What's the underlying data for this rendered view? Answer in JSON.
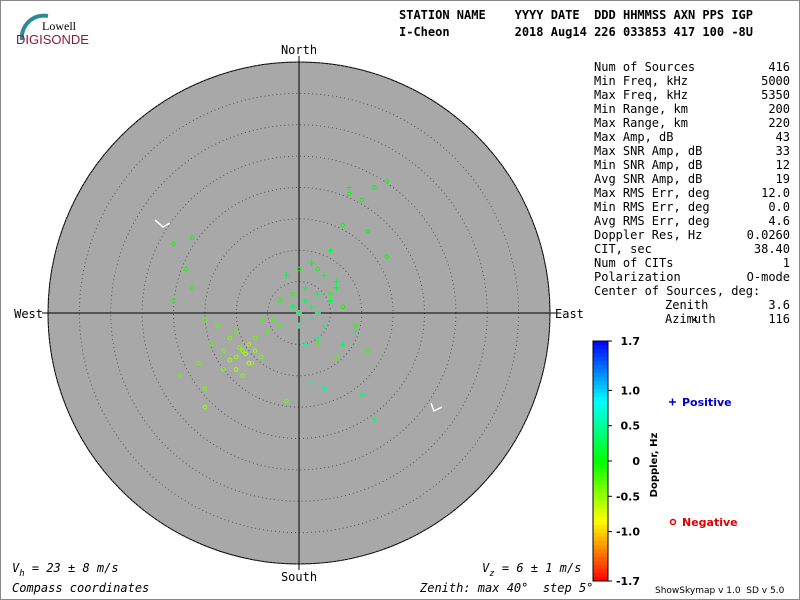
{
  "header": {
    "logo_top": "Lowell",
    "logo_bottom": "DIGISONDE",
    "columns": "STATION NAME    YYYY DATE  DDD HHMMSS AXN PPS IGP",
    "values": "I-Cheon         2018 Aug14 226 033853 417 100 -8U"
  },
  "chart_data": {
    "type": "skymap",
    "directions": {
      "north": "North",
      "south": "South",
      "east": "East",
      "west": "West"
    },
    "rlim": [
      0,
      40
    ],
    "rticks": [
      5,
      10,
      15,
      20,
      25,
      30,
      35,
      40
    ],
    "colorbar": {
      "label": "Doppler, Hz",
      "lim": [
        -1.7,
        1.7
      ],
      "ticks": [
        1.7,
        {
          "value": 1,
          "label": "1.0"
        },
        0.5,
        0,
        -0.5,
        {
          "value": -1,
          "label": "-1.0"
        },
        -1.7
      ]
    },
    "series": [
      {
        "name": "Positive",
        "marker": "plus",
        "color": "#0000cc",
        "x": [
          1,
          2,
          0,
          3,
          1,
          4,
          -1,
          2,
          3,
          5,
          6,
          2,
          3,
          0,
          4,
          7,
          9,
          2,
          4,
          10,
          12,
          8,
          6,
          -2,
          5,
          1
        ],
        "y": [
          2,
          1,
          0,
          3,
          4,
          6,
          1,
          -1,
          0,
          2,
          5,
          8,
          -4,
          -2,
          -2,
          -5,
          -3,
          -11,
          -12,
          -13,
          -17,
          20,
          4,
          6,
          10,
          -5
        ],
        "values": [
          0.3,
          0.35,
          0.3,
          0.25,
          0.2,
          0.2,
          0.3,
          0.4,
          0.3,
          0.25,
          0.2,
          0.15,
          0.4,
          0.45,
          0.35,
          0.3,
          0.3,
          0.5,
          0.45,
          0.4,
          0.35,
          0.1,
          0.2,
          0.2,
          0.15,
          0.5
        ]
      },
      {
        "name": "Negative",
        "marker": "circle",
        "color": "#dd0000",
        "x": [
          -9,
          -8,
          -10,
          -9.5,
          -8.5,
          -7,
          -11,
          -12,
          -6,
          -10,
          -7.5,
          -13,
          -14,
          -12,
          -9,
          -5,
          -4,
          -3,
          -6,
          -15,
          -17,
          -20,
          -18,
          -16,
          -19,
          -15,
          -3,
          -1,
          0,
          3,
          5,
          7,
          9,
          11,
          6,
          3,
          -2,
          -15,
          -8,
          -10,
          -11,
          -7,
          8,
          12,
          14,
          11,
          14,
          10,
          7,
          -20,
          -17
        ],
        "y": [
          -6,
          -5,
          -7,
          -5.5,
          -6.5,
          -4,
          -4,
          -6,
          -7,
          -3,
          -8,
          -2,
          -5,
          -9,
          -10,
          -3,
          -1,
          -2,
          -1,
          -1,
          4,
          2,
          7,
          -8,
          -10,
          -12,
          2,
          3,
          7,
          7,
          3,
          1,
          -2,
          -6,
          -7,
          -5,
          -14,
          -15,
          -8,
          -9,
          -7.5,
          -6,
          19,
          20,
          21,
          13,
          9,
          18,
          14,
          11,
          12
        ],
        "values": [
          -0.45,
          -0.5,
          -0.5,
          -0.4,
          -0.55,
          -0.3,
          -0.4,
          -0.35,
          -0.4,
          -0.3,
          -0.45,
          -0.3,
          -0.25,
          -0.4,
          -0.4,
          -0.25,
          -0.2,
          -0.2,
          -0.2,
          -0.3,
          -0.1,
          -0.1,
          -0.05,
          -0.3,
          -0.3,
          -0.35,
          -0.1,
          -0.1,
          -0.05,
          -0.05,
          -0.1,
          -0.05,
          -0.1,
          -0.15,
          -0.2,
          -0.2,
          -0.4,
          -0.5,
          -0.6,
          -0.55,
          -0.5,
          -0.5,
          0,
          0.05,
          0.02,
          0.02,
          0,
          0,
          0,
          -0.05,
          0
        ]
      }
    ]
  },
  "stats": {
    "rows": [
      [
        "Num of Sources",
        "416"
      ],
      [
        "Min Freq, kHz",
        "5000"
      ],
      [
        "Max Freq, kHz",
        "5350"
      ],
      [
        "Min Range, km",
        "200"
      ],
      [
        "Max Range, km",
        "220"
      ],
      [
        "Max Amp, dB",
        "43"
      ],
      [
        "Max SNR Amp, dB",
        "33"
      ],
      [
        "Min SNR Amp, dB",
        "12"
      ],
      [
        "Avg SNR Amp, dB",
        "19"
      ],
      [
        "Max RMS Err, deg",
        "12.0"
      ],
      [
        "Min RMS Err, deg",
        "0.0"
      ],
      [
        "Avg RMS Err, deg",
        "4.6"
      ],
      [
        "Doppler Res, Hz",
        "0.0260"
      ],
      [
        "CIT, sec",
        "38.40"
      ],
      [
        "Num of CITs",
        "1"
      ],
      [
        "Polarization",
        "O-mode"
      ]
    ],
    "center_title": "Center of Sources, deg:",
    "center_rows": [
      [
        "Zenith",
        "3.6"
      ],
      [
        "Azimuth",
        "116"
      ]
    ]
  },
  "footer": {
    "vh_symbol": "V",
    "vh_sub": "h",
    "vh_text": " = 23 ± 8 m/s",
    "vz_symbol": "V",
    "vz_sub": "z",
    "vz_text": " = 6 ± 1 m/s",
    "coords": "Compass coordinates",
    "zenith": "Zenith: max 40°  step 5°",
    "version": "ShowSkymap v 1.0  SD v 5.0"
  }
}
